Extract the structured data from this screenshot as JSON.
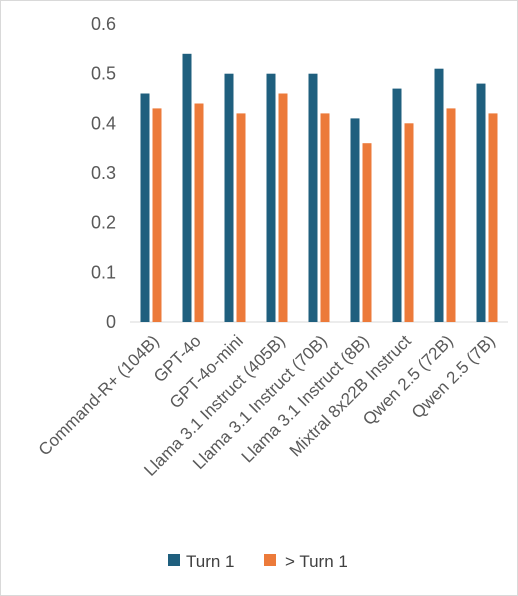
{
  "chart_data": {
    "type": "bar",
    "categories": [
      "Command-R+ (104B)",
      "GPT-4o",
      "GPT-4o-mini",
      "Llama 3.1 Instruct (405B)",
      "Llama 3.1 Instruct (70B)",
      "Llama 3.1 Instruct (8B)",
      "Mixtral 8x22B Instruct",
      "Qwen 2.5 (72B)",
      "Qwen 2.5 (7B)"
    ],
    "series": [
      {
        "name": "Turn 1",
        "color": "#1f5f7e",
        "values": [
          0.46,
          0.54,
          0.5,
          0.5,
          0.5,
          0.41,
          0.47,
          0.51,
          0.48
        ]
      },
      {
        "name": "> Turn 1",
        "color": "#ec7a3a",
        "values": [
          0.43,
          0.44,
          0.42,
          0.46,
          0.42,
          0.36,
          0.4,
          0.43,
          0.42
        ]
      }
    ],
    "yticks": [
      "0",
      "0.1",
      "0.2",
      "0.3",
      "0.4",
      "0.5",
      "0.6"
    ],
    "ylim": [
      0,
      0.6
    ],
    "grid": false,
    "legend_position": "bottom"
  }
}
